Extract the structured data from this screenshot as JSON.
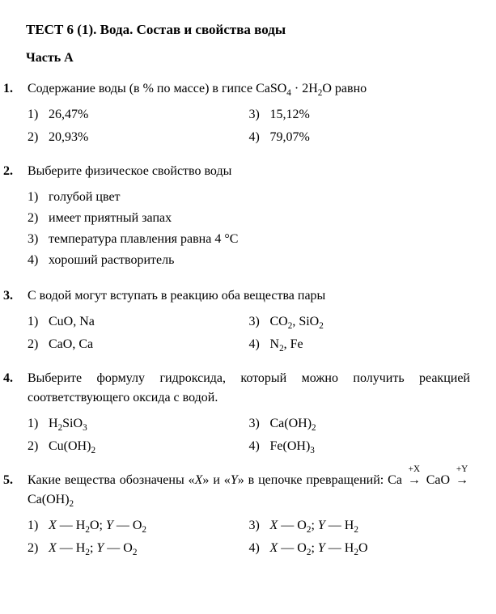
{
  "title": "ТЕСТ 6 (1). Вода. Состав и свойства воды",
  "subtitle": "Часть А",
  "questions": [
    {
      "num": "1.",
      "prompt_html": "Содержание воды (в % по массе) в гипсе CaSO<sub>4</sub> · 2H<sub>2</sub>O равно",
      "layout": "two-col",
      "options": [
        {
          "n": "1)",
          "html": "26,47%"
        },
        {
          "n": "2)",
          "html": "20,93%"
        },
        {
          "n": "3)",
          "html": "15,12%"
        },
        {
          "n": "4)",
          "html": "79,07%"
        }
      ]
    },
    {
      "num": "2.",
      "prompt_html": "Выберите физическое свойство воды",
      "layout": "one-col",
      "options": [
        {
          "n": "1)",
          "html": "голубой цвет"
        },
        {
          "n": "2)",
          "html": "имеет приятный запах"
        },
        {
          "n": "3)",
          "html": "температура плавления равна 4 °C"
        },
        {
          "n": "4)",
          "html": "хороший растворитель"
        }
      ]
    },
    {
      "num": "3.",
      "prompt_html": "С водой могут вступать в реакцию оба вещества пары",
      "layout": "two-col",
      "options": [
        {
          "n": "1)",
          "html": "CuO, Na"
        },
        {
          "n": "2)",
          "html": "CaO, Ca"
        },
        {
          "n": "3)",
          "html": "CO<sub>2</sub>, SiO<sub>2</sub>"
        },
        {
          "n": "4)",
          "html": "N<sub>2</sub>, Fe"
        }
      ]
    },
    {
      "num": "4.",
      "prompt_html": "Выберите формулу гидроксида, который можно по&shy;лучить реакцией соответствующего оксида с водой.",
      "layout": "two-col",
      "options": [
        {
          "n": "1)",
          "html": "H<sub>2</sub>SiO<sub>3</sub>"
        },
        {
          "n": "2)",
          "html": "Cu(OH)<sub>2</sub>"
        },
        {
          "n": "3)",
          "html": "Ca(OH)<sub>2</sub>"
        },
        {
          "n": "4)",
          "html": "Fe(OH)<sub>3</sub>"
        }
      ]
    },
    {
      "num": "5.",
      "prompt_html": "Какие вещества обозначены «<span class=\"italic\">X</span>» и «<span class=\"italic\">Y</span>» в цепочке превращений: Ca <span class=\"arrow\"><span class=\"arrow-sup\">+X</span>→</span> CaO <span class=\"arrow\"><span class=\"arrow-sup\">+Y</span>→</span> Ca(OH)<sub>2</sub>",
      "layout": "two-col",
      "options": [
        {
          "n": "1)",
          "html": "<span class=\"italic\">X</span> — H<sub>2</sub>O; <span class=\"italic\">Y</span> — O<sub>2</sub>"
        },
        {
          "n": "2)",
          "html": "<span class=\"italic\">X</span> — H<sub>2</sub>; <span class=\"italic\">Y</span> — O<sub>2</sub>"
        },
        {
          "n": "3)",
          "html": "<span class=\"italic\">X</span> — O<sub>2</sub>; <span class=\"italic\">Y</span> — H<sub>2</sub>"
        },
        {
          "n": "4)",
          "html": "<span class=\"italic\">X</span> — O<sub>2</sub>; <span class=\"italic\">Y</span> — H<sub>2</sub>O"
        }
      ]
    }
  ]
}
